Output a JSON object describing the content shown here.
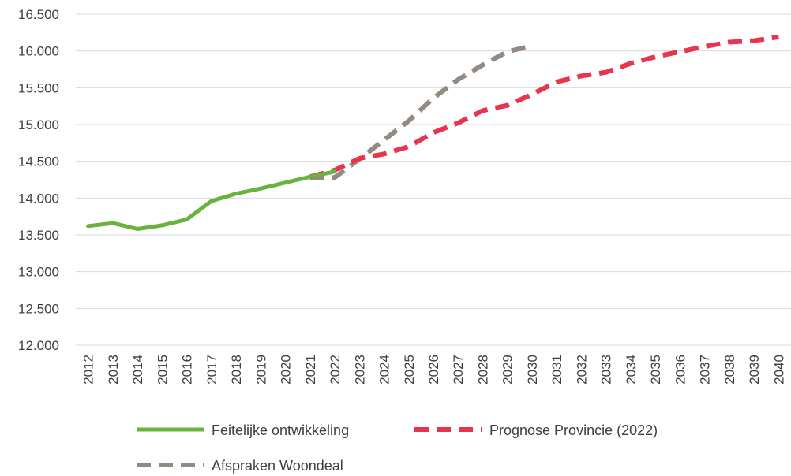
{
  "chart_data": {
    "type": "line",
    "title": "",
    "xlabel": "",
    "ylabel": "",
    "ylim": [
      12000,
      16500
    ],
    "yticks": [
      "12.000",
      "12.500",
      "13.000",
      "13.500",
      "14.000",
      "14.500",
      "15.000",
      "15.500",
      "16.000",
      "16.500"
    ],
    "ytick_values": [
      12000,
      12500,
      13000,
      13500,
      14000,
      14500,
      15000,
      15500,
      16000,
      16500
    ],
    "x": [
      "2012",
      "2013",
      "2014",
      "2015",
      "2016",
      "2017",
      "2018",
      "2019",
      "2020",
      "2021",
      "2022",
      "2023",
      "2024",
      "2025",
      "2026",
      "2027",
      "2028",
      "2029",
      "2030",
      "2031",
      "2032",
      "2033",
      "2034",
      "2035",
      "2036",
      "2037",
      "2038",
      "2039",
      "2040"
    ],
    "grid": true,
    "legend_position": "bottom",
    "series": [
      {
        "name": "Feitelijke ontwikkeling",
        "color": "#6ab23e",
        "style": "solid",
        "x": [
          "2012",
          "2013",
          "2014",
          "2015",
          "2016",
          "2017",
          "2018",
          "2019",
          "2020",
          "2021",
          "2022"
        ],
        "values": [
          13620,
          13660,
          13580,
          13630,
          13710,
          13960,
          14060,
          14130,
          14210,
          14290,
          14360
        ]
      },
      {
        "name": "Prognose Provincie (2022)",
        "color": "#e8344e",
        "style": "dashed",
        "x": [
          "2021",
          "2022",
          "2023",
          "2024",
          "2025",
          "2026",
          "2027",
          "2028",
          "2029",
          "2030",
          "2031",
          "2032",
          "2033",
          "2034",
          "2035",
          "2036",
          "2037",
          "2038",
          "2039",
          "2040"
        ],
        "values": [
          14290,
          14380,
          14540,
          14600,
          14700,
          14890,
          15020,
          15190,
          15260,
          15410,
          15580,
          15660,
          15710,
          15830,
          15920,
          15990,
          16060,
          16120,
          16140,
          16190
        ]
      },
      {
        "name": "Afspraken Woondeal",
        "color": "#928a83",
        "style": "dashed",
        "x": [
          "2021",
          "2022",
          "2023",
          "2024",
          "2025",
          "2026",
          "2027",
          "2028",
          "2029",
          "2030"
        ],
        "values": [
          14270,
          14280,
          14530,
          14790,
          15050,
          15360,
          15610,
          15810,
          15990,
          16070
        ]
      }
    ]
  }
}
